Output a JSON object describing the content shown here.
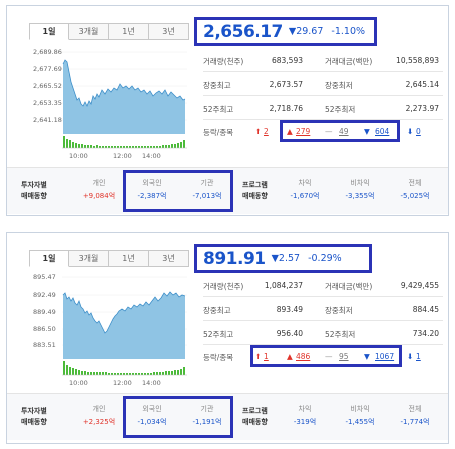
{
  "panels": [
    {
      "tabs": [
        "1일",
        "3개월",
        "1년",
        "3년"
      ],
      "price": "2,656.17",
      "change": "▼29.67",
      "percent": "-1.10%",
      "y_ticks": [
        "2,689.86",
        "2,677.69",
        "2,665.52",
        "2,653.35",
        "2,641.18"
      ],
      "x_ticks": [
        "10:00",
        "12:00",
        "14:00"
      ],
      "stats": [
        {
          "l1": "거래량(천주)",
          "v1": "683,593",
          "l2": "거래대금(백만)",
          "v2": "10,558,893"
        },
        {
          "l1": "장중최고",
          "v1": "2,673.57",
          "l2": "장중최저",
          "v2": "2,645.14"
        },
        {
          "l1": "52주최고",
          "v1": "2,718.76",
          "l2": "52주최저",
          "v2": "2,273.97"
        }
      ],
      "updown": {
        "label": "등락/종목",
        "limit_up": "2",
        "up": "279",
        "flat": "49",
        "down": "604",
        "limit_down": "0"
      },
      "investor": {
        "label1": "투자자별",
        "label2": "매매동향",
        "retail_h": "개인",
        "retail": "+9,084억",
        "foreign_h": "외국인",
        "foreign": "-2,387억",
        "inst_h": "기관",
        "inst": "-7,013억"
      },
      "program": {
        "label1": "프로그램",
        "label2": "매매동향",
        "arb_h": "차익",
        "arb": "-1,670억",
        "nonarb_h": "비차익",
        "nonarb": "-3,355억",
        "total_h": "전체",
        "total": "-5,025억"
      }
    },
    {
      "tabs": [
        "1일",
        "3개월",
        "1년",
        "3년"
      ],
      "price": "891.91",
      "change": "▼2.57",
      "percent": "-0.29%",
      "y_ticks": [
        "895.47",
        "892.49",
        "889.49",
        "886.50",
        "883.51"
      ],
      "x_ticks": [
        "10:00",
        "12:00",
        "14:00"
      ],
      "stats": [
        {
          "l1": "거래량(천주)",
          "v1": "1,084,237",
          "l2": "거래대금(백만)",
          "v2": "9,429,455"
        },
        {
          "l1": "장중최고",
          "v1": "893.49",
          "l2": "장중최저",
          "v2": "884.45"
        },
        {
          "l1": "52주최고",
          "v1": "956.40",
          "l2": "52주최저",
          "v2": "734.20"
        }
      ],
      "updown": {
        "label": "등락/종목",
        "limit_up": "1",
        "up": "486",
        "flat": "95",
        "down": "1067",
        "limit_down": "1"
      },
      "investor": {
        "label1": "투자자별",
        "label2": "매매동향",
        "retail_h": "개인",
        "retail": "+2,325억",
        "foreign_h": "외국인",
        "foreign": "-1,034억",
        "inst_h": "기관",
        "inst": "-1,191억"
      },
      "program": {
        "label1": "프로그램",
        "label2": "매매동향",
        "arb_h": "차익",
        "arb": "-319억",
        "nonarb_h": "비차익",
        "nonarb": "-1,455억",
        "total_h": "전체",
        "total": "-1,774억"
      }
    }
  ],
  "colors": {
    "accent_blue": "#1a54c9",
    "highlight_box": "#2b33b6",
    "red": "#e0332a",
    "area_fill": "#8fc4e4",
    "volume_green": "#4cbb3a"
  }
}
